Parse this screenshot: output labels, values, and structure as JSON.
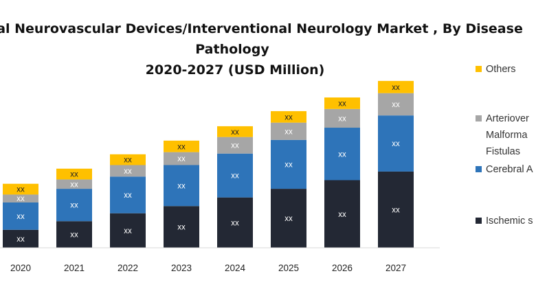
{
  "chart_data": {
    "type": "bar",
    "stacked": true,
    "title_lines": [
      "al Neurovascular Devices/Interventional Neurology Market , By Disease",
      "Pathology",
      "2020-2027 (USD Million)"
    ],
    "categories": [
      "2020",
      "2021",
      "2022",
      "2023",
      "2024",
      "2025",
      "2026",
      "2027"
    ],
    "series": [
      {
        "name": "Ischemic s",
        "color": "#232834",
        "values": [
          2.5,
          3.7,
          4.8,
          5.8,
          7.0,
          8.2,
          9.4,
          10.6
        ],
        "labels": [
          "xx",
          "xx",
          "xx",
          "xx",
          "xx",
          "xx",
          "xx",
          "xx"
        ]
      },
      {
        "name": "Cerebral A",
        "color": "#2e74b9",
        "values": [
          3.8,
          4.5,
          5.1,
          5.7,
          6.1,
          6.8,
          7.3,
          7.8
        ],
        "labels": [
          "xx",
          "xx",
          "xx",
          "xx",
          "xx",
          "xx",
          "xx",
          "xx"
        ]
      },
      {
        "name": "Arteriovenous Malformations and Fistulas",
        "color": "#a6a6a6",
        "values": [
          1.1,
          1.3,
          1.6,
          1.8,
          2.3,
          2.4,
          2.6,
          3.1
        ],
        "labels": [
          "xx",
          "xx",
          "xx",
          "xx",
          "xx",
          "xx",
          "xx",
          "xx"
        ]
      },
      {
        "name": "Others",
        "color": "#ffc000",
        "values": [
          1.5,
          1.5,
          1.5,
          1.6,
          1.5,
          1.6,
          1.6,
          1.7
        ],
        "labels": [
          "xx",
          "xx",
          "xx",
          "xx",
          "xx",
          "xx",
          "xx",
          "xx"
        ]
      }
    ],
    "legend_entries": [
      "Others",
      "Arteriover",
      "Malforma",
      "Fistulas",
      "Cerebral A",
      "Ischemic s"
    ],
    "xlabel": "",
    "ylabel": "",
    "ylim": [
      0,
      23
    ],
    "grid": false,
    "legend_position": "right"
  }
}
